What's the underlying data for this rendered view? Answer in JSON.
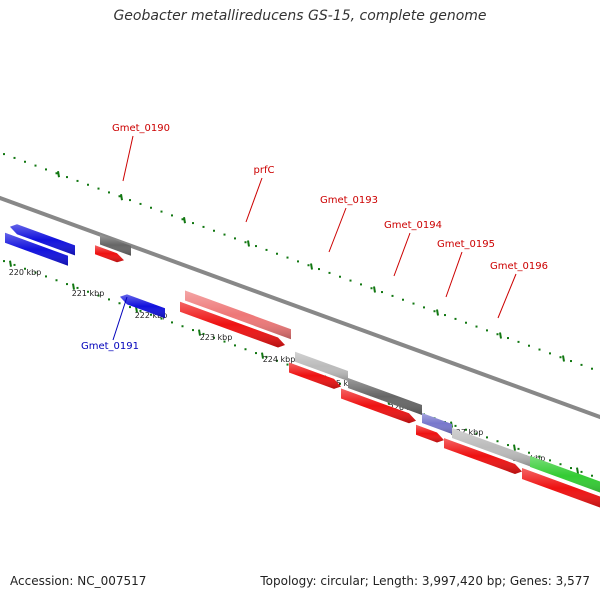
{
  "title": "Geobacter metallireducens GS-15, complete genome",
  "footer": {
    "accession": "Accession: NC_007517",
    "stats": "Topology: circular; Length: 3,997,420 bp; Genes: 3,577"
  },
  "colors": {
    "forward_cds": "#ee1111",
    "reverse_cds": "#1111dd",
    "hypothetical": "#666666",
    "light_gray": "#bbbbbb",
    "pink": "#ee7777",
    "purple": "#7777cc",
    "green": "#33cc33",
    "tick_green": "#117711",
    "label_red": "#cc0000",
    "label_blue": "#0000bb"
  },
  "tick_labels": [
    "220 kbp",
    "221 kbp",
    "222 kbp",
    "223 kbp",
    "224 kbp",
    "225 kbp",
    "226 kbp",
    "227 kbp",
    "228 kbp"
  ],
  "gene_labels": [
    {
      "name": "Gmet_0190",
      "color": "label_red"
    },
    {
      "name": "prfC",
      "color": "label_red"
    },
    {
      "name": "Gmet_0193",
      "color": "label_red"
    },
    {
      "name": "Gmet_0194",
      "color": "label_red"
    },
    {
      "name": "Gmet_0195",
      "color": "label_red"
    },
    {
      "name": "Gmet_0196",
      "color": "label_red"
    },
    {
      "name": "Gmet_0191",
      "color": "label_blue"
    }
  ]
}
